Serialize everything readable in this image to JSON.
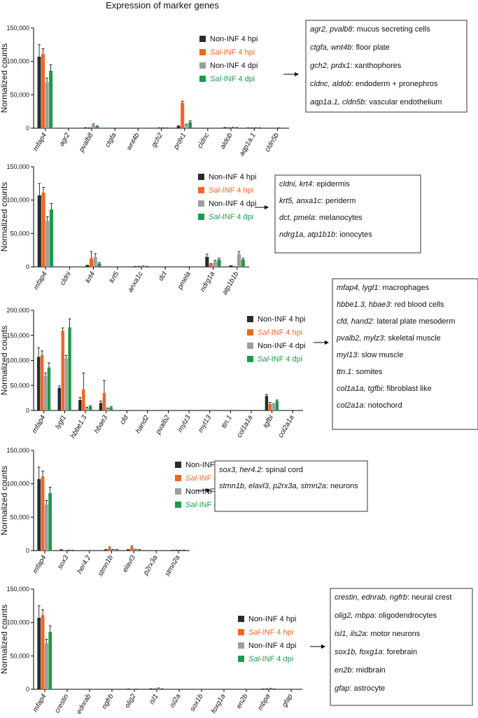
{
  "title": "Expression of marker genes",
  "colors": {
    "Non-INF 4 hpi": "#2b2b2b",
    "Sal-INF 4 hpi": "#f26522",
    "Non-INF 4 dpi": "#9e9e9e",
    "Sal-INF 4 dpi": "#1b9a4b"
  },
  "legend": [
    {
      "pre": "",
      "ital": "",
      "post": "Non-INF 4 hpi",
      "color_key": "Non-INF 4 hpi"
    },
    {
      "pre": "",
      "ital": "Sal",
      "post": "-INF 4 hpi",
      "color_key": "Sal-INF 4 hpi"
    },
    {
      "pre": "",
      "ital": "",
      "post": "Non-INF 4 dpi",
      "color_key": "Non-INF 4 dpi"
    },
    {
      "pre": "",
      "ital": "Sal",
      "post": "-INF 4 dpi",
      "color_key": "Sal-INF 4 dpi"
    }
  ],
  "chart_data": [
    {
      "type": "bar",
      "ylabel": "Normalized counts",
      "ylim": [
        0,
        150000
      ],
      "yticks": [
        0,
        50000,
        100000,
        150000
      ],
      "ytick_labels": [
        "0",
        "50,000",
        "100,000",
        "150,000"
      ],
      "categories": [
        "mfap4",
        "agr2",
        "pvalb8",
        "ctgfa",
        "wnt4b",
        "gch2",
        "prdx1",
        "cldnc",
        "aldob",
        "aqp1a.1",
        "cldn5b"
      ],
      "series": [
        {
          "name": "Non-INF 4 hpi",
          "values": [
            107000,
            0,
            500,
            0,
            0,
            0,
            3000,
            0,
            800,
            300,
            0
          ],
          "errors": [
            18000,
            0,
            300,
            0,
            0,
            0,
            800,
            0,
            300,
            200,
            0
          ]
        },
        {
          "name": "Sal-INF 4 hpi",
          "values": [
            111000,
            0,
            300,
            0,
            0,
            500,
            38000,
            0,
            500,
            200,
            0
          ],
          "errors": [
            8000,
            0,
            200,
            0,
            0,
            300,
            2500,
            0,
            300,
            200,
            0
          ]
        },
        {
          "name": "Non-INF 4 dpi",
          "values": [
            69000,
            0,
            5000,
            0,
            0,
            300,
            5000,
            0,
            1200,
            500,
            300
          ],
          "errors": [
            6000,
            0,
            1500,
            0,
            0,
            200,
            1000,
            0,
            400,
            300,
            200
          ]
        },
        {
          "name": "Sal-INF 4 dpi",
          "values": [
            86000,
            0,
            2500,
            0,
            0,
            200,
            9000,
            0,
            800,
            300,
            0
          ],
          "errors": [
            9000,
            0,
            800,
            0,
            0,
            200,
            2000,
            0,
            300,
            200,
            0
          ]
        }
      ],
      "annotations": [
        {
          "genes": "agr2, pvalb8",
          "label": ": mucus secreting cells"
        },
        {
          "genes": "ctgfa, wnt4b",
          "label": ": floor plate"
        },
        {
          "genes": "gch2, prdx1",
          "label": ": xanthophores"
        },
        {
          "genes": "cldnc, aldob",
          "label": ": endoderm + pronephros"
        },
        {
          "genes": "aqp1a.1, cldn5b",
          "label": ": vascular endothelium"
        }
      ]
    },
    {
      "type": "bar",
      "ylabel": "Normalized counts",
      "ylim": [
        0,
        150000
      ],
      "yticks": [
        0,
        50000,
        100000,
        150000
      ],
      "ytick_labels": [
        "0",
        "50,000",
        "100,000",
        "150,000"
      ],
      "categories": [
        "mfap4",
        "cldni",
        "krt4",
        "krt5",
        "anxa1c",
        "dct",
        "pmela",
        "ndrg1a",
        "atp1b1b"
      ],
      "series": [
        {
          "name": "Non-INF 4 hpi",
          "values": [
            107000,
            0,
            2000,
            0,
            300,
            0,
            0,
            15000,
            1500
          ],
          "errors": [
            18000,
            0,
            500,
            0,
            200,
            0,
            0,
            4000,
            400
          ]
        },
        {
          "name": "Sal-INF 4 hpi",
          "values": [
            111000,
            0,
            13000,
            0,
            500,
            0,
            0,
            4000,
            200
          ],
          "errors": [
            8000,
            0,
            10000,
            0,
            300,
            0,
            0,
            1000,
            100
          ]
        },
        {
          "name": "Non-INF 4 dpi",
          "values": [
            69000,
            0,
            15000,
            0,
            1000,
            0,
            0,
            8000,
            19000
          ],
          "errors": [
            6000,
            0,
            5000,
            0,
            400,
            0,
            0,
            2000,
            4000
          ]
        },
        {
          "name": "Sal-INF 4 dpi",
          "values": [
            86000,
            0,
            5000,
            0,
            500,
            0,
            0,
            11000,
            11000
          ],
          "errors": [
            9000,
            0,
            1500,
            0,
            300,
            0,
            0,
            2000,
            2000
          ]
        }
      ],
      "annotations": [
        {
          "genes": "cldni, krt4",
          "label": ": epidermis"
        },
        {
          "genes": "krt5, anxa1c",
          "label": ": periderm"
        },
        {
          "genes": "dct, pmela",
          "label": ": melanocytes"
        },
        {
          "genes": "ndrg1a, atp1b1b",
          "label": ": ionocytes"
        }
      ]
    },
    {
      "type": "bar",
      "ylabel": "Normalized counts",
      "ylim": [
        0,
        200000
      ],
      "yticks": [
        0,
        50000,
        100000,
        150000,
        200000
      ],
      "ytick_labels": [
        "0",
        "50,000",
        "100,000",
        "150,000",
        "200,000"
      ],
      "categories": [
        "mfap4",
        "lygl1",
        "hbbe1.3",
        "hbae3",
        "cfd",
        "hand2",
        "pvalb2",
        "mylz3",
        "myl13",
        "ttn.1",
        "col1a1a",
        "tgfbi",
        "col2a1a"
      ],
      "series": [
        {
          "name": "Non-INF 4 hpi",
          "values": [
            107000,
            45000,
            21000,
            15000,
            0,
            0,
            0,
            0,
            0,
            0,
            0,
            29000,
            0
          ],
          "errors": [
            18000,
            4000,
            5000,
            4000,
            0,
            0,
            0,
            0,
            0,
            0,
            0,
            3000,
            0
          ]
        },
        {
          "name": "Sal-INF 4 hpi",
          "values": [
            111000,
            159000,
            42000,
            35000,
            0,
            0,
            0,
            0,
            0,
            0,
            0,
            13000,
            0
          ],
          "errors": [
            8000,
            6000,
            33000,
            25000,
            0,
            0,
            0,
            0,
            0,
            0,
            0,
            3000,
            0
          ]
        },
        {
          "name": "Non-INF 4 dpi",
          "values": [
            69000,
            104000,
            5000,
            4000,
            0,
            0,
            0,
            0,
            0,
            0,
            0,
            11000,
            0
          ],
          "errors": [
            6000,
            6000,
            1500,
            1000,
            0,
            0,
            0,
            0,
            0,
            0,
            0,
            2000,
            0
          ]
        },
        {
          "name": "Sal-INF 4 dpi",
          "values": [
            86000,
            166000,
            8000,
            6000,
            0,
            0,
            0,
            0,
            0,
            0,
            0,
            19000,
            0
          ],
          "errors": [
            9000,
            17000,
            1500,
            1500,
            0,
            0,
            0,
            0,
            0,
            0,
            0,
            2000,
            0
          ]
        }
      ],
      "annotations": [
        {
          "genes": "mfap4, lygl1",
          "label": ": macrophages"
        },
        {
          "genes": "hbbe1.3, hbae3",
          "label": ": red blood cells"
        },
        {
          "genes": "cfd, hand2",
          "label": ": lateral plate mesoderm"
        },
        {
          "genes": "pvalb2, mylz3",
          "label": ": skeletal muscle"
        },
        {
          "genes": "myl13",
          "label": ": slow muscle"
        },
        {
          "genes": "ttn.1",
          "label": ": somites"
        },
        {
          "genes": "col1a1a, tgfbi",
          "label": ": fibroblast like"
        },
        {
          "genes": "col2a1a",
          "label": ": notochord"
        }
      ]
    },
    {
      "type": "bar",
      "ylabel": "Normalized counts",
      "ylim": [
        0,
        150000
      ],
      "yticks": [
        0,
        50000,
        100000,
        150000
      ],
      "ytick_labels": [
        "0",
        "50,000",
        "100,000",
        "150,000"
      ],
      "categories": [
        "mfap4",
        "sox3",
        "her4.2",
        "stmn1b",
        "elavl3",
        "p2rx3a",
        "stmn2a"
      ],
      "series": [
        {
          "name": "Non-INF 4 hpi",
          "values": [
            107000,
            1000,
            0,
            1000,
            1000,
            0,
            300
          ],
          "errors": [
            18000,
            500,
            0,
            500,
            500,
            0,
            200
          ]
        },
        {
          "name": "Sal-INF 4 hpi",
          "values": [
            111000,
            0,
            0,
            4000,
            5000,
            0,
            500
          ],
          "errors": [
            8000,
            0,
            0,
            1500,
            2000,
            0,
            300
          ]
        },
        {
          "name": "Non-INF 4 dpi",
          "values": [
            69000,
            500,
            0,
            1000,
            1500,
            0,
            300
          ],
          "errors": [
            6000,
            300,
            0,
            500,
            500,
            0,
            200
          ]
        },
        {
          "name": "Sal-INF 4 dpi",
          "values": [
            86000,
            300,
            0,
            1000,
            1000,
            0,
            500
          ],
          "errors": [
            9000,
            200,
            0,
            500,
            500,
            0,
            300
          ]
        }
      ],
      "annotations": [
        {
          "genes": "sox3, her4.2",
          "label": ": spinal cord"
        },
        {
          "genes": "stmn1b, elavl3, p2rx3a, stmn2a",
          "label": ": neurons"
        }
      ]
    },
    {
      "type": "bar",
      "ylabel": "Normalized counts",
      "ylim": [
        0,
        150000
      ],
      "yticks": [
        0,
        50000,
        100000,
        150000
      ],
      "ytick_labels": [
        "0",
        "50,000",
        "100,000",
        "150,000"
      ],
      "categories": [
        "mfap4",
        "crestin",
        "ednrab",
        "ngfrb",
        "olig2",
        "isl1",
        "isl2a",
        "sox1b",
        "foxg1a",
        "en2b",
        "mbpa",
        "gfap"
      ],
      "series": [
        {
          "name": "Non-INF 4 hpi",
          "values": [
            107000,
            0,
            0,
            0,
            300,
            500,
            0,
            0,
            0,
            0,
            300,
            0
          ],
          "errors": [
            18000,
            0,
            0,
            0,
            200,
            300,
            0,
            0,
            0,
            0,
            200,
            0
          ]
        },
        {
          "name": "Sal-INF 4 hpi",
          "values": [
            111000,
            0,
            0,
            0,
            0,
            300,
            0,
            0,
            0,
            0,
            500,
            0
          ],
          "errors": [
            8000,
            0,
            0,
            0,
            0,
            200,
            0,
            0,
            0,
            0,
            300,
            0
          ]
        },
        {
          "name": "Non-INF 4 dpi",
          "values": [
            69000,
            0,
            0,
            0,
            200,
            1500,
            0,
            0,
            0,
            0,
            1000,
            0
          ],
          "errors": [
            6000,
            0,
            0,
            0,
            100,
            500,
            0,
            0,
            0,
            0,
            400,
            0
          ]
        },
        {
          "name": "Sal-INF 4 dpi",
          "values": [
            86000,
            0,
            0,
            0,
            0,
            500,
            0,
            0,
            0,
            0,
            300,
            0
          ],
          "errors": [
            9000,
            0,
            0,
            0,
            0,
            300,
            0,
            0,
            0,
            0,
            200,
            0
          ]
        }
      ],
      "annotations": [
        {
          "genes": "crestin, ednrab, ngfrb",
          "label": ": neural crest"
        },
        {
          "genes": "olig2, mbpa",
          "label": ": oligodendrocytes"
        },
        {
          "genes": "isl1, ils2a",
          "label": ": motor neurons"
        },
        {
          "genes": "sox1b, foxg1a",
          "label": ": forebrain"
        },
        {
          "genes": "en2b",
          "label": ": midbrain"
        },
        {
          "genes": "gfap",
          "label": ": astrocyte"
        }
      ]
    }
  ]
}
